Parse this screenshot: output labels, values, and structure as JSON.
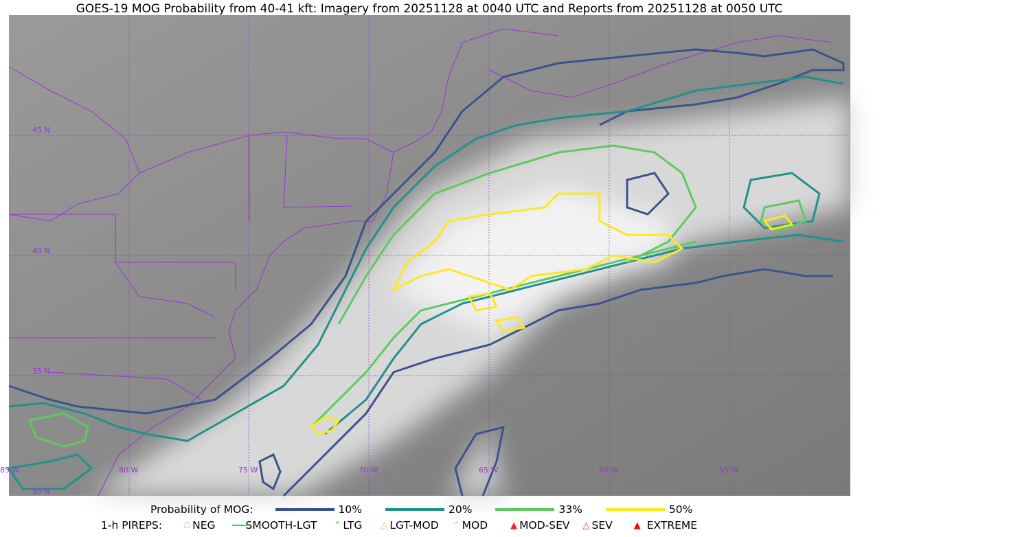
{
  "title": "GOES-19 MOG Probability from 40-41 kft: Imagery from 20251128 at 0040 UTC and Reports from 20251128 at 0050 UTC",
  "map": {
    "lon_labels": [
      "85 W",
      "80 W",
      "75 W",
      "70 W",
      "65 W",
      "60 W",
      "55 W"
    ],
    "lat_labels": [
      "45 N",
      "40 N",
      "35 N",
      "30 N"
    ],
    "colors": {
      "grid": "#9b30d9",
      "boundaries": "#9b30d9",
      "p10": "#3b528b",
      "p20": "#21918c",
      "p33": "#5ec962",
      "p50": "#fde725"
    }
  },
  "legend": {
    "prob_title": "Probability of MOG:",
    "prob_items": [
      {
        "label": "10%",
        "color": "#3b528b"
      },
      {
        "label": "20%",
        "color": "#21918c"
      },
      {
        "label": "33%",
        "color": "#5ec962"
      },
      {
        "label": "50%",
        "color": "#fde725"
      }
    ],
    "pirep_title": "1-h PIREPS:",
    "pirep_items": [
      {
        "label": "NEG",
        "color": "#c8c8ff",
        "icon": "neg-icon"
      },
      {
        "label": "SMOOTH-LGT",
        "color": "#00ff00",
        "icon": "smooth-lgt-icon"
      },
      {
        "label": "LTG",
        "color": "#00e000",
        "icon": "ltg-icon"
      },
      {
        "label": "LGT-MOD",
        "color": "#ffb300",
        "icon": "lgt-mod-icon"
      },
      {
        "label": "MOD",
        "color": "#ffb300",
        "icon": "mod-icon"
      },
      {
        "label": "MOD-SEV",
        "color": "#ff2020",
        "icon": "mod-sev-icon"
      },
      {
        "label": "SEV",
        "color": "#ff2020",
        "icon": "sev-icon"
      },
      {
        "label": "EXTREME",
        "color": "#ff0000",
        "icon": "extreme-icon"
      }
    ]
  }
}
